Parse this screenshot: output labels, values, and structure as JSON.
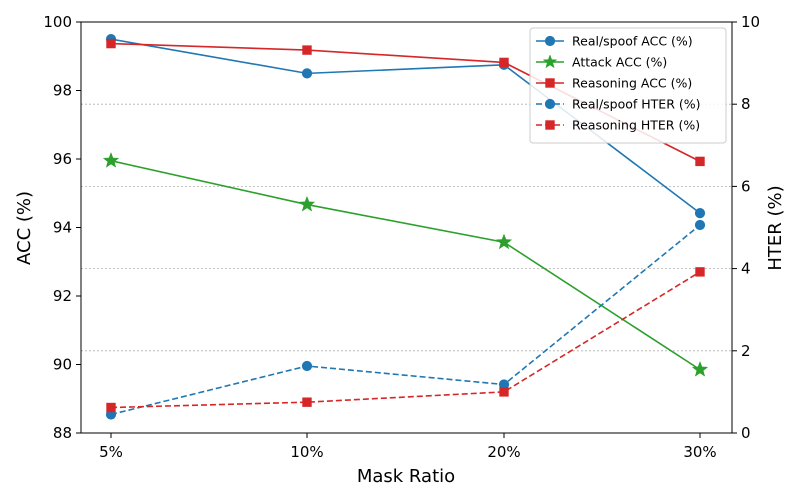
{
  "chart_data": {
    "type": "line",
    "categories": [
      "5%",
      "10%",
      "20%",
      "30%"
    ],
    "xlabel": "Mask Ratio",
    "ylabel_left": "ACC (%)",
    "ylabel_right": "HTER (%)",
    "ylim_left": [
      88,
      100
    ],
    "yticks_left": [
      "88",
      "90",
      "92",
      "94",
      "96",
      "98",
      "100"
    ],
    "ylim_right": [
      0,
      10
    ],
    "yticks_right": [
      "0",
      "2",
      "4",
      "6",
      "8",
      "10"
    ],
    "grid": "horizontal dotted, right axis",
    "legend_position": "top-right",
    "series": [
      {
        "name": "Real/spoof ACC (%)",
        "axis": "left",
        "color": "#1f77b4",
        "dash": "solid",
        "marker": "circle",
        "values": [
          99.5,
          98.5,
          98.75,
          94.42
        ]
      },
      {
        "name": "Attack ACC (%)",
        "axis": "left",
        "color": "#2ca02c",
        "dash": "solid",
        "marker": "star",
        "values": [
          95.95,
          94.67,
          93.57,
          89.85
        ]
      },
      {
        "name": "Reasoning ACC (%)",
        "axis": "left",
        "color": "#d62728",
        "dash": "solid",
        "marker": "square",
        "values": [
          99.37,
          99.18,
          98.82,
          95.93
        ]
      },
      {
        "name": "Real/spoof HTER (%)",
        "axis": "right",
        "color": "#1f77b4",
        "dash": "dashed",
        "marker": "circle",
        "values": [
          0.45,
          1.63,
          1.18,
          5.06
        ]
      },
      {
        "name": "Reasoning HTER (%)",
        "axis": "right",
        "color": "#d62728",
        "dash": "dashed",
        "marker": "square",
        "values": [
          0.62,
          0.75,
          1.0,
          3.92
        ]
      }
    ]
  }
}
